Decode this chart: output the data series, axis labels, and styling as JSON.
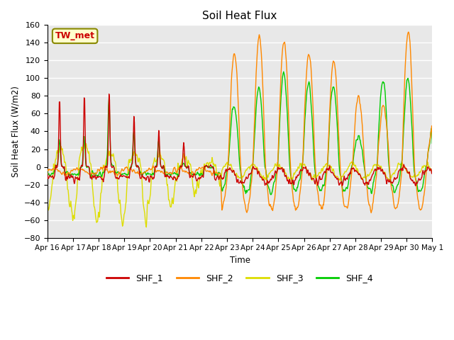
{
  "title": "Soil Heat Flux",
  "ylabel": "Soil Heat Flux (W/m2)",
  "xlabel": "Time",
  "ylim": [
    -80,
    160
  ],
  "yticks": [
    -80,
    -60,
    -40,
    -20,
    0,
    20,
    40,
    60,
    80,
    100,
    120,
    140,
    160
  ],
  "plot_bg_color": "#e8e8e8",
  "grid_color": "white",
  "series_colors": {
    "SHF_1": "#cc0000",
    "SHF_2": "#ff8800",
    "SHF_3": "#dddd00",
    "SHF_4": "#00cc00"
  },
  "legend_label": "TW_met",
  "legend_bg": "#ffffcc",
  "legend_border": "#888800",
  "x_tick_labels": [
    "Apr 16",
    "Apr 17",
    "Apr 18",
    "Apr 19",
    "Apr 20",
    "Apr 21",
    "Apr 22",
    "Apr 23",
    "Apr 24",
    "Apr 25",
    "Apr 26",
    "Apr 27",
    "Apr 28",
    "Apr 29",
    "Apr 30",
    "May 1"
  ],
  "line_width": 1.0
}
